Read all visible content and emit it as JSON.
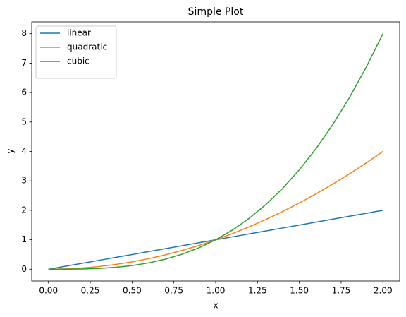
{
  "chart_data": {
    "type": "line",
    "title": "Simple Plot",
    "x_label": "x",
    "y_label": "y",
    "x": [
      0,
      0.1,
      0.2,
      0.3,
      0.4,
      0.5,
      0.6,
      0.7,
      0.8,
      0.9,
      1,
      1.1,
      1.2,
      1.3,
      1.4,
      1.5,
      1.6,
      1.7,
      1.8,
      1.9,
      2
    ],
    "series": [
      {
        "name": "linear",
        "color": "#1f77b4",
        "values": [
          0,
          0.1,
          0.2,
          0.3,
          0.4,
          0.5,
          0.6,
          0.7,
          0.8,
          0.9,
          1,
          1.1,
          1.2,
          1.3,
          1.4,
          1.5,
          1.6,
          1.7,
          1.8,
          1.9,
          2
        ]
      },
      {
        "name": "quadratic",
        "color": "#ff7f0e",
        "values": [
          0,
          0.01,
          0.04,
          0.09,
          0.16,
          0.25,
          0.36,
          0.49,
          0.64,
          0.81,
          1,
          1.21,
          1.44,
          1.69,
          1.96,
          2.25,
          2.56,
          2.89,
          3.24,
          3.61,
          4
        ]
      },
      {
        "name": "cubic",
        "color": "#2ca02c",
        "values": [
          0,
          0.001,
          0.008,
          0.027,
          0.064,
          0.125,
          0.216,
          0.343,
          0.512,
          0.729,
          1,
          1.331,
          1.728,
          2.197,
          2.744,
          3.375,
          4.096,
          4.913,
          5.832,
          6.859,
          8
        ]
      }
    ],
    "xlim": [
      -0.1,
      2.1
    ],
    "xticks": [
      {
        "value": 0,
        "label": "0.00"
      },
      {
        "value": 0.25,
        "label": "0.25"
      },
      {
        "value": 0.5,
        "label": "0.50"
      },
      {
        "value": 0.75,
        "label": "0.75"
      },
      {
        "value": 1,
        "label": "1.00"
      },
      {
        "value": 1.25,
        "label": "1.25"
      },
      {
        "value": 1.5,
        "label": "1.50"
      },
      {
        "value": 1.75,
        "label": "1.75"
      },
      {
        "value": 2,
        "label": "2.00"
      }
    ],
    "ylim": [
      -0.4,
      8.4
    ],
    "yticks": [
      0,
      1,
      2,
      3,
      4,
      5,
      6,
      7,
      8
    ],
    "grid": false,
    "legend": "upper left"
  }
}
